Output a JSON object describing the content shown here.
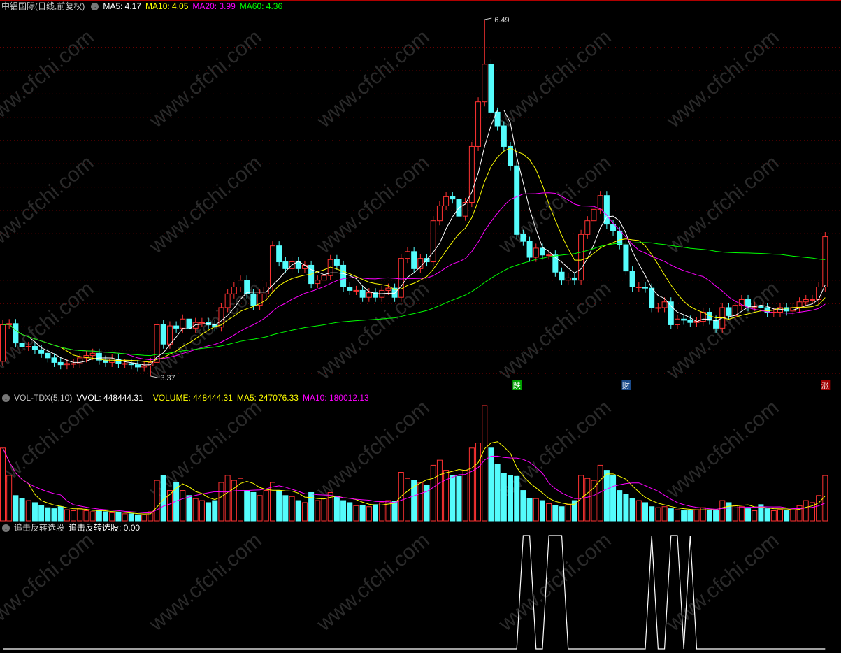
{
  "price_header": {
    "title": "中铝国际(日线,前复权)",
    "ma5": "MA5: 4.17",
    "ma10": "MA10: 4.05",
    "ma20": "MA20: 3.99",
    "ma60": "MA60: 4.36"
  },
  "volume_header": {
    "name": "VOL-TDX(5,10)",
    "vvol": "VVOL: 448444.31",
    "volume": "VOLUME: 448444.31",
    "ma5": "MA5: 247076.33",
    "ma10": "MA10: 180012.13"
  },
  "indicator_header": {
    "name": "追击反转选股",
    "value": "追击反转选股: 0.00"
  },
  "watermark": "www.cfchi.com",
  "colors": {
    "up": "#ff3232",
    "down": "#54fcfc",
    "ma5": "#ffffff",
    "ma10": "#ffff00",
    "ma20": "#ff00ff",
    "ma60": "#00ff00",
    "grid": "#8b0000",
    "separator": "#b00000"
  },
  "chart_data": [
    {
      "type": "candlestick",
      "title": "中铝国际(日线,前复权)",
      "ylim": [
        3.37,
        6.49
      ],
      "grid": true,
      "annotations": [
        {
          "label": "6.49",
          "index": 75,
          "value": 6.49
        },
        {
          "label": "3.37",
          "index": 23,
          "value": 3.37
        }
      ],
      "markers": [
        {
          "label": "跌",
          "index": 80,
          "color": "#00a000"
        },
        {
          "label": "财",
          "index": 97,
          "color": "#1a4a8a"
        },
        {
          "label": "涨",
          "index": 128,
          "color": "#a00000"
        }
      ],
      "close": [
        3.82,
        3.83,
        3.66,
        3.63,
        3.63,
        3.6,
        3.57,
        3.53,
        3.49,
        3.47,
        3.48,
        3.48,
        3.53,
        3.55,
        3.57,
        3.51,
        3.49,
        3.52,
        3.48,
        3.48,
        3.47,
        3.45,
        3.46,
        3.49,
        3.82,
        3.65,
        3.81,
        3.79,
        3.87,
        3.79,
        3.84,
        3.84,
        3.82,
        3.8,
        3.97,
        4.09,
        4.15,
        4.21,
        4.09,
        3.99,
        4.09,
        4.15,
        4.51,
        4.37,
        4.31,
        4.37,
        4.31,
        4.34,
        4.18,
        4.21,
        4.25,
        4.39,
        4.34,
        4.15,
        4.12,
        4.12,
        4.06,
        4.1,
        4.06,
        4.12,
        4.14,
        4.06,
        4.4,
        4.46,
        4.31,
        4.4,
        4.37,
        4.73,
        4.86,
        4.94,
        4.92,
        4.77,
        4.89,
        5.38,
        5.77,
        6.1,
        5.68,
        5.56,
        5.38,
        5.21,
        4.61,
        4.55,
        4.41,
        4.49,
        4.43,
        4.43,
        4.28,
        4.21,
        4.23,
        4.21,
        4.61,
        4.73,
        4.83,
        4.95,
        4.7,
        4.64,
        4.52,
        4.29,
        4.15,
        4.15,
        4.14,
        3.97,
        3.97,
        4.02,
        3.82,
        3.87,
        3.86,
        3.84,
        3.85,
        3.93,
        3.86,
        3.79,
        3.97,
        3.9,
        3.99,
        4.04,
        3.98,
        3.98,
        3.97,
        3.93,
        3.93,
        3.97,
        3.94,
        3.97,
        4.02,
        4.04,
        4.04,
        4.15,
        4.59
      ],
      "ma_periods": [
        5,
        10,
        20,
        60
      ]
    },
    {
      "type": "bar",
      "title": "VOL-TDX(5,10)",
      "unit": "thousand",
      "values": [
        720,
        450,
        250,
        220,
        200,
        180,
        150,
        130,
        120,
        140,
        110,
        100,
        120,
        100,
        90,
        100,
        90,
        80,
        80,
        70,
        70,
        60,
        60,
        90,
        400,
        450,
        300,
        380,
        300,
        250,
        220,
        200,
        180,
        200,
        380,
        450,
        400,
        420,
        300,
        280,
        250,
        300,
        380,
        300,
        250,
        240,
        200,
        180,
        280,
        200,
        220,
        280,
        240,
        200,
        180,
        150,
        150,
        140,
        160,
        180,
        200,
        190,
        480,
        420,
        400,
        380,
        350,
        550,
        600,
        500,
        450,
        440,
        500,
        720,
        770,
        1140,
        720,
        560,
        470,
        450,
        440,
        300,
        220,
        220,
        200,
        170,
        150,
        140,
        160,
        200,
        450,
        420,
        400,
        550,
        500,
        450,
        300,
        260,
        220,
        200,
        180,
        140,
        130,
        140,
        120,
        110,
        100,
        100,
        110,
        130,
        110,
        100,
        200,
        180,
        150,
        140,
        120,
        100,
        160,
        120,
        100,
        110,
        100,
        110,
        150,
        200,
        180,
        250,
        448.44
      ],
      "ma_periods": [
        5,
        10
      ]
    },
    {
      "type": "line",
      "title": "追击反转选股",
      "ylim": [
        0,
        1
      ],
      "signal_indices": [
        81,
        82,
        85,
        86,
        87,
        101,
        104,
        105,
        107
      ]
    }
  ]
}
